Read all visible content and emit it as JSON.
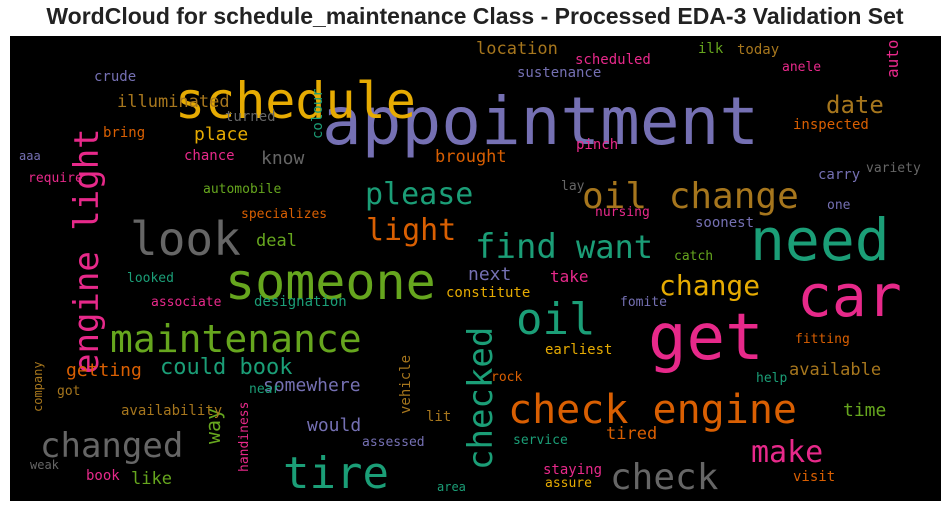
{
  "chart_data": {
    "type": "wordcloud",
    "title": "WordCloud for schedule_maintenance Class - Processed EDA-3 Validation Set",
    "background": "#000000",
    "words": [
      {
        "text": "appointment",
        "color": "#7570b3",
        "rotated": false
      },
      {
        "text": "schedule",
        "color": "#e6ab02",
        "rotated": false
      },
      {
        "text": "need",
        "color": "#1b9e77",
        "rotated": false
      },
      {
        "text": "car",
        "color": "#e7298a",
        "rotated": false
      },
      {
        "text": "get",
        "color": "#e7298a",
        "rotated": false
      },
      {
        "text": "engine light",
        "color": "#e7298a",
        "rotated": true
      },
      {
        "text": "someone",
        "color": "#66a61e",
        "rotated": false
      },
      {
        "text": "look",
        "color": "#666666",
        "rotated": false
      },
      {
        "text": "oil change",
        "color": "#a6761d",
        "rotated": false
      },
      {
        "text": "check engine",
        "color": "#d95f02",
        "rotated": false
      },
      {
        "text": "maintenance",
        "color": "#66a61e",
        "rotated": false
      },
      {
        "text": "tire",
        "color": "#1b9e77",
        "rotated": false
      },
      {
        "text": "changed",
        "color": "#666666",
        "rotated": false
      },
      {
        "text": "check",
        "color": "#666666",
        "rotated": false
      },
      {
        "text": "oil",
        "color": "#1b9e77",
        "rotated": false
      },
      {
        "text": "checked",
        "color": "#1b9e77",
        "rotated": true
      },
      {
        "text": "find",
        "color": "#1b9e77",
        "rotated": false
      },
      {
        "text": "want",
        "color": "#1b9e77",
        "rotated": false
      },
      {
        "text": "please",
        "color": "#1b9e77",
        "rotated": false
      },
      {
        "text": "light",
        "color": "#d95f02",
        "rotated": false
      },
      {
        "text": "make",
        "color": "#e7298a",
        "rotated": false
      },
      {
        "text": "change",
        "color": "#e6ab02",
        "rotated": false
      },
      {
        "text": "date",
        "color": "#a6761d",
        "rotated": false
      },
      {
        "text": "could book",
        "color": "#1b9e77",
        "rotated": false
      },
      {
        "text": "illuminated",
        "color": "#a6761d",
        "rotated": false
      },
      {
        "text": "place",
        "color": "#e6ab02",
        "rotated": false
      },
      {
        "text": "brought",
        "color": "#d95f02",
        "rotated": false
      },
      {
        "text": "location",
        "color": "#a6761d",
        "rotated": false
      },
      {
        "text": "next",
        "color": "#7570b3",
        "rotated": false
      },
      {
        "text": "take",
        "color": "#e7298a",
        "rotated": false
      },
      {
        "text": "getting",
        "color": "#d95f02",
        "rotated": false
      },
      {
        "text": "somewhere",
        "color": "#7570b3",
        "rotated": false
      },
      {
        "text": "available",
        "color": "#a6761d",
        "rotated": false
      },
      {
        "text": "time",
        "color": "#66a61e",
        "rotated": false
      },
      {
        "text": "would",
        "color": "#7570b3",
        "rotated": false
      },
      {
        "text": "way",
        "color": "#66a61e",
        "rotated": true
      },
      {
        "text": "like",
        "color": "#66a61e",
        "rotated": false
      },
      {
        "text": "tired",
        "color": "#d95f02",
        "rotated": false
      },
      {
        "text": "deal",
        "color": "#66a61e",
        "rotated": false
      },
      {
        "text": "know",
        "color": "#666666",
        "rotated": false
      },
      {
        "text": "auto",
        "color": "#e7298a",
        "rotated": true
      },
      {
        "text": "vehicle",
        "color": "#a6761d",
        "rotated": true
      },
      {
        "text": "turned",
        "color": "#666666",
        "rotated": false
      },
      {
        "text": "colour",
        "color": "#1b9e77",
        "rotated": true
      },
      {
        "text": "bring",
        "color": "#d95f02",
        "rotated": false
      },
      {
        "text": "chance",
        "color": "#e7298a",
        "rotated": false
      },
      {
        "text": "crude",
        "color": "#7570b3",
        "rotated": false
      },
      {
        "text": "aaa",
        "color": "#7570b3",
        "rotated": false
      },
      {
        "text": "require",
        "color": "#e7298a",
        "rotated": false
      },
      {
        "text": "automobile",
        "color": "#66a61e",
        "rotated": false
      },
      {
        "text": "specializes",
        "color": "#d95f02",
        "rotated": false
      },
      {
        "text": "looked",
        "color": "#1b9e77",
        "rotated": false
      },
      {
        "text": "associate",
        "color": "#e7298a",
        "rotated": false
      },
      {
        "text": "designation",
        "color": "#1b9e77",
        "rotated": false
      },
      {
        "text": "constitute",
        "color": "#e6ab02",
        "rotated": false
      },
      {
        "text": "earliest",
        "color": "#e6ab02",
        "rotated": false
      },
      {
        "text": "near",
        "color": "#1b9e77",
        "rotated": false
      },
      {
        "text": "company",
        "color": "#a6761d",
        "rotated": true
      },
      {
        "text": "got",
        "color": "#a6761d",
        "rotated": false
      },
      {
        "text": "availability",
        "color": "#a6761d",
        "rotated": false
      },
      {
        "text": "handiness",
        "color": "#e7298a",
        "rotated": true
      },
      {
        "text": "weak",
        "color": "#666666",
        "rotated": false
      },
      {
        "text": "book",
        "color": "#e7298a",
        "rotated": false
      },
      {
        "text": "lit",
        "color": "#a6761d",
        "rotated": false
      },
      {
        "text": "assessed",
        "color": "#7570b3",
        "rotated": false
      },
      {
        "text": "rock",
        "color": "#d95f02",
        "rotated": false
      },
      {
        "text": "service",
        "color": "#1b9e77",
        "rotated": false
      },
      {
        "text": "area",
        "color": "#1b9e77",
        "rotated": false
      },
      {
        "text": "staying",
        "color": "#e7298a",
        "rotated": false
      },
      {
        "text": "assure",
        "color": "#e6ab02",
        "rotated": false
      },
      {
        "text": "visit",
        "color": "#d95f02",
        "rotated": false
      },
      {
        "text": "help",
        "color": "#1b9e77",
        "rotated": false
      },
      {
        "text": "fitting",
        "color": "#d95f02",
        "rotated": false
      },
      {
        "text": "fomite",
        "color": "#7570b3",
        "rotated": false
      },
      {
        "text": "catch",
        "color": "#66a61e",
        "rotated": false
      },
      {
        "text": "soonest",
        "color": "#7570b3",
        "rotated": false
      },
      {
        "text": "nursing",
        "color": "#e7298a",
        "rotated": false
      },
      {
        "text": "lay",
        "color": "#666666",
        "rotated": false
      },
      {
        "text": "carry",
        "color": "#7570b3",
        "rotated": false
      },
      {
        "text": "variety",
        "color": "#666666",
        "rotated": false
      },
      {
        "text": "one",
        "color": "#7570b3",
        "rotated": false
      },
      {
        "text": "pinch",
        "color": "#e7298a",
        "rotated": false
      },
      {
        "text": "inspected",
        "color": "#d95f02",
        "rotated": false
      },
      {
        "text": "scheduled",
        "color": "#e7298a",
        "rotated": false
      },
      {
        "text": "sustenance",
        "color": "#7570b3",
        "rotated": false
      },
      {
        "text": "ilk",
        "color": "#66a61e",
        "rotated": false
      },
      {
        "text": "today",
        "color": "#a6761d",
        "rotated": false
      },
      {
        "text": "anele",
        "color": "#e7298a",
        "rotated": false
      }
    ]
  }
}
